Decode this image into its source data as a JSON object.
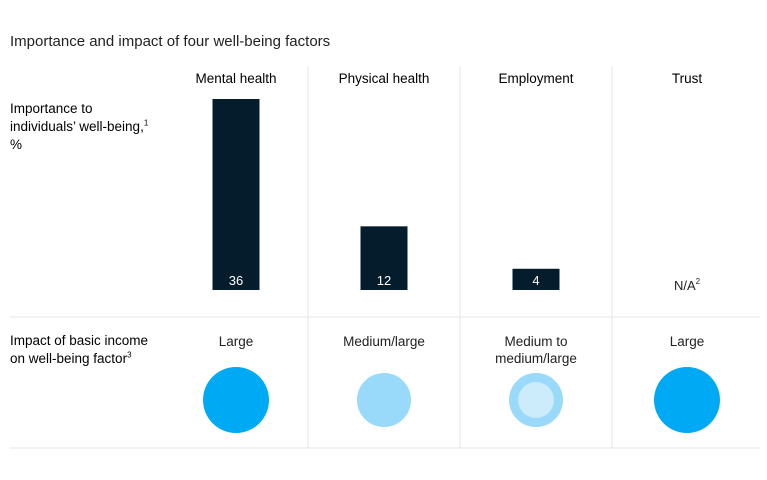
{
  "title": "Importance and impact of four well-being factors",
  "row_labels": {
    "importance": "Importance to individuals’ well-being,",
    "importance_sup": "1",
    "importance_unit": " %",
    "impact": "Impact of basic income on well-being factor",
    "impact_sup": "3"
  },
  "colors": {
    "bar": "#051c2c",
    "large": "#00a9f4",
    "medium_large": "#99d9f9",
    "medium_ring": "#99d9f9",
    "medium_inner": "#ccecfc",
    "divider": "#e6e6e6"
  },
  "chart_data": {
    "type": "bar",
    "title": "Importance and impact of four well-being factors",
    "categories": [
      "Mental health",
      "Physical health",
      "Employment",
      "Trust"
    ],
    "values": [
      36,
      12,
      4,
      null
    ],
    "value_labels": [
      "36",
      "12",
      "4",
      "N/A"
    ],
    "na_sup": "2",
    "ylim": [
      0,
      36
    ],
    "impact": [
      {
        "label": "Large",
        "level": "large"
      },
      {
        "label": "Medium/large",
        "level": "medium_large"
      },
      {
        "label": "Medium to medium/large",
        "level": "medium"
      },
      {
        "label": "Large",
        "level": "large"
      }
    ]
  }
}
